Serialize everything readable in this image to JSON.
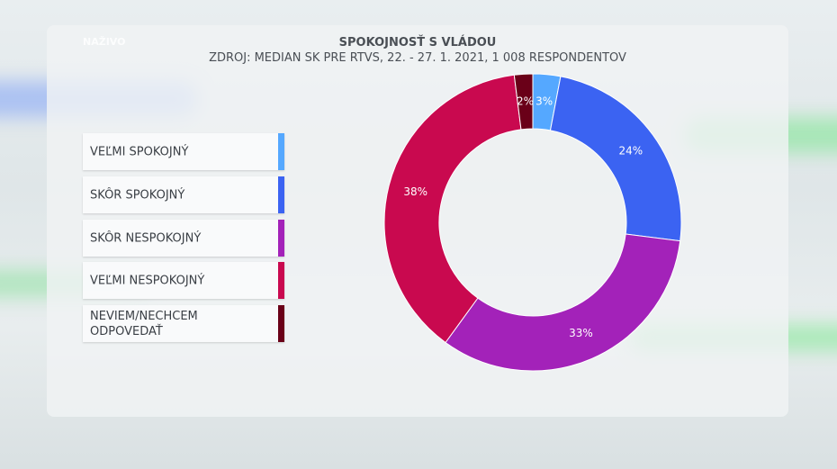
{
  "broadcast": {
    "badge": "NAŽIVO"
  },
  "chart_data": {
    "type": "donut",
    "title": "SPOKOJNOSŤ S VLÁDOU",
    "subtitle": "ZDROJ: MEDIAN SK PRE RTVS, 22. - 27. 1. 2021, 1 008 RESPONDENTOV",
    "categories": [
      "VEĽMI SPOKOJNÝ",
      "SKÔR SPOKOJNÝ",
      "SKÔR NESPOKOJNÝ",
      "VEĽMI NESPOKOJNÝ",
      "NEVIEM/NECHCEM ODPOVEDAŤ"
    ],
    "values": [
      3,
      24,
      33,
      38,
      2
    ],
    "value_labels": [
      "3%",
      "24%",
      "33%",
      "38%",
      "2%"
    ],
    "colors": [
      "#55a8ff",
      "#3b63f2",
      "#a322b9",
      "#c9094f",
      "#6a0018"
    ]
  }
}
